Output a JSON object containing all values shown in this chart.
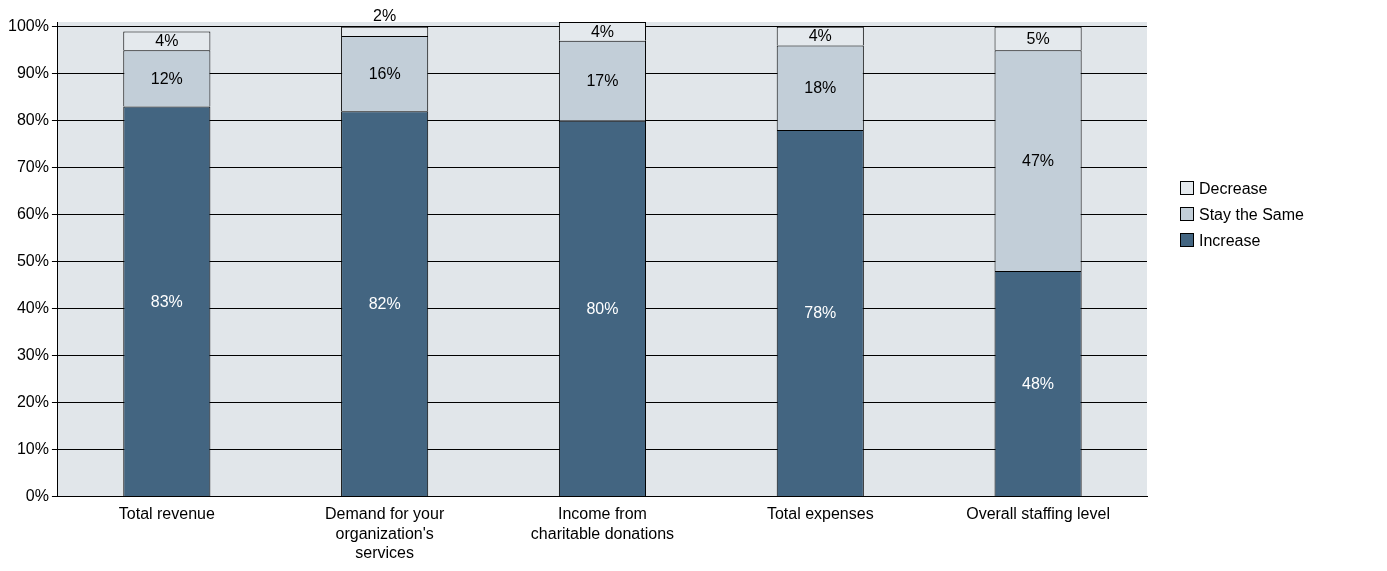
{
  "chart_data": {
    "type": "bar",
    "stacked": true,
    "categories": [
      "Total revenue",
      "Demand for your organization's services",
      "Income from charitable donations",
      "Total expenses",
      "Overall staffing level"
    ],
    "series": [
      {
        "name": "Increase",
        "color": "#436581",
        "values": [
          83,
          82,
          80,
          78,
          48
        ],
        "value_labels": [
          "83%",
          "82%",
          "80%",
          "78%",
          "48%"
        ]
      },
      {
        "name": "Stay the Same",
        "color": "#c2ced8",
        "values": [
          12,
          16,
          17,
          18,
          47
        ],
        "value_labels": [
          "12%",
          "16%",
          "17%",
          "18%",
          "47%"
        ]
      },
      {
        "name": "Decrease",
        "color": "#e4e9ed",
        "values": [
          4,
          2,
          4,
          4,
          5
        ],
        "value_labels": [
          "4%",
          "2%",
          "4%",
          "4%",
          "5%"
        ]
      }
    ],
    "ylim": [
      0,
      101
    ],
    "yticks": [
      {
        "value": 0,
        "label": "0%"
      },
      {
        "value": 10,
        "label": "10%"
      },
      {
        "value": 20,
        "label": "20%"
      },
      {
        "value": 30,
        "label": "30%"
      },
      {
        "value": 40,
        "label": "40%"
      },
      {
        "value": 50,
        "label": "50%"
      },
      {
        "value": 60,
        "label": "60%"
      },
      {
        "value": 70,
        "label": "70%"
      },
      {
        "value": 80,
        "label": "80%"
      },
      {
        "value": 90,
        "label": "90%"
      },
      {
        "value": 100,
        "label": "100%"
      }
    ],
    "grid": "y",
    "legend": "right"
  }
}
